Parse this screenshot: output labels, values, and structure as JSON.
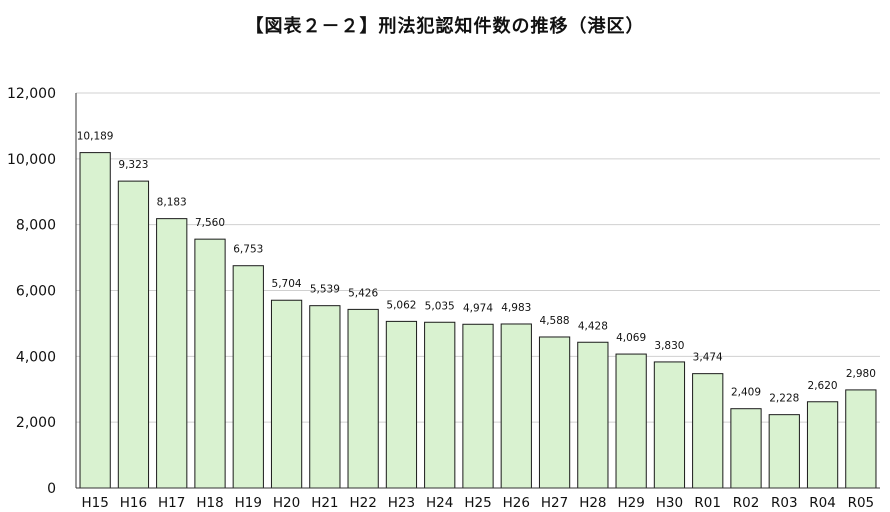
{
  "chart_data": {
    "type": "bar",
    "title": "【図表２－２】刑法犯認知件数の推移（港区）",
    "xlabel": "",
    "ylabel": "",
    "categories": [
      "H15",
      "H16",
      "H17",
      "H18",
      "H19",
      "H20",
      "H21",
      "H22",
      "H23",
      "H24",
      "H25",
      "H26",
      "H27",
      "H28",
      "H29",
      "H30",
      "R01",
      "R02",
      "R03",
      "R04",
      "R05"
    ],
    "values": [
      10189,
      9323,
      8183,
      7560,
      6753,
      5704,
      5539,
      5426,
      5062,
      5035,
      4974,
      4983,
      4588,
      4428,
      4069,
      3830,
      3474,
      2409,
      2228,
      2620,
      2980
    ],
    "data_labels": [
      "10,189",
      "9,323",
      "8,183",
      "7,560",
      "6,753",
      "5,704",
      "5,539",
      "5,426",
      "5,062",
      "5,035",
      "4,974",
      "4,983",
      "4,588",
      "4,428",
      "4,069",
      "3,830",
      "3,474",
      "2,409",
      "2,228",
      "2,620",
      "2,980"
    ],
    "ylim": [
      0,
      12000
    ],
    "yticks": [
      0,
      2000,
      4000,
      6000,
      8000,
      10000,
      12000
    ],
    "ytick_labels": [
      "0",
      "2,000",
      "4,000",
      "6,000",
      "8,000",
      "10,000",
      "12,000"
    ],
    "grid": true,
    "colors": {
      "bar_fill": "#d9f2d0",
      "bar_stroke": "#1a1a1a",
      "grid": "#d0d0d0",
      "axis": "#333333"
    }
  }
}
